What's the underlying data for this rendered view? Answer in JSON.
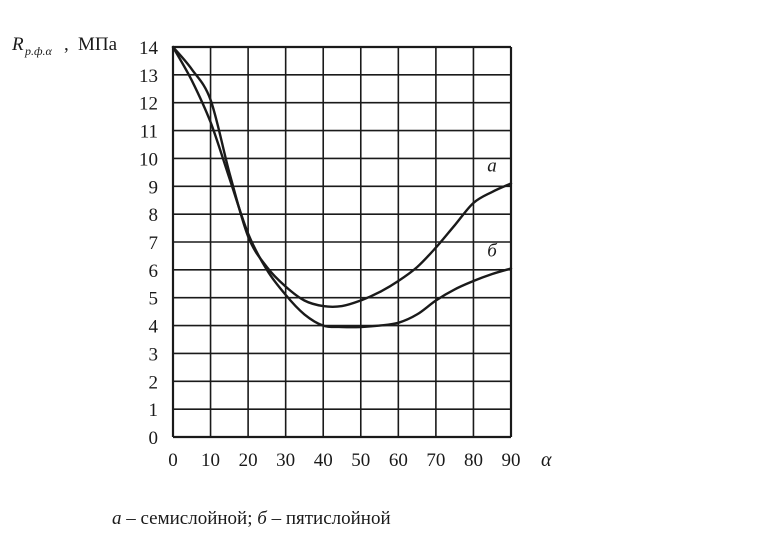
{
  "chart_data": {
    "type": "line",
    "ylabel": {
      "symbol": "R",
      "subscript": "р.ф.α",
      "separator": ",",
      "unit": "МПа"
    },
    "xlabel": "α",
    "xlim": [
      0,
      90
    ],
    "ylim": [
      0,
      14
    ],
    "xticks": [
      0,
      10,
      20,
      30,
      40,
      50,
      60,
      70,
      80,
      90
    ],
    "yticks": [
      0,
      1,
      2,
      3,
      4,
      5,
      6,
      7,
      8,
      9,
      10,
      11,
      12,
      13,
      14
    ],
    "grid": true,
    "line_color": "#1a1a1a",
    "series": [
      {
        "name": "а",
        "x": [
          0,
          5,
          10,
          15,
          20,
          25,
          30,
          35,
          40,
          45,
          50,
          55,
          60,
          65,
          70,
          75,
          80,
          85,
          90
        ],
        "values": [
          14,
          13.2,
          12.1,
          9.5,
          7.2,
          6.1,
          5.4,
          4.9,
          4.7,
          4.7,
          4.9,
          5.2,
          5.6,
          6.1,
          6.8,
          7.6,
          8.4,
          8.8,
          9.1
        ]
      },
      {
        "name": "б",
        "x": [
          0,
          5,
          10,
          15,
          20,
          25,
          30,
          35,
          40,
          45,
          50,
          55,
          60,
          65,
          70,
          75,
          80,
          85,
          90
        ],
        "values": [
          14,
          12.8,
          11.3,
          9.3,
          7.3,
          6.0,
          5.1,
          4.4,
          4.0,
          3.95,
          3.95,
          4.0,
          4.1,
          4.4,
          4.9,
          5.3,
          5.6,
          5.85,
          6.05
        ]
      }
    ]
  },
  "caption": {
    "a_marker": "а",
    "a_text": " – семислойной; ",
    "b_marker": "б",
    "b_text": " – пятислойной"
  }
}
